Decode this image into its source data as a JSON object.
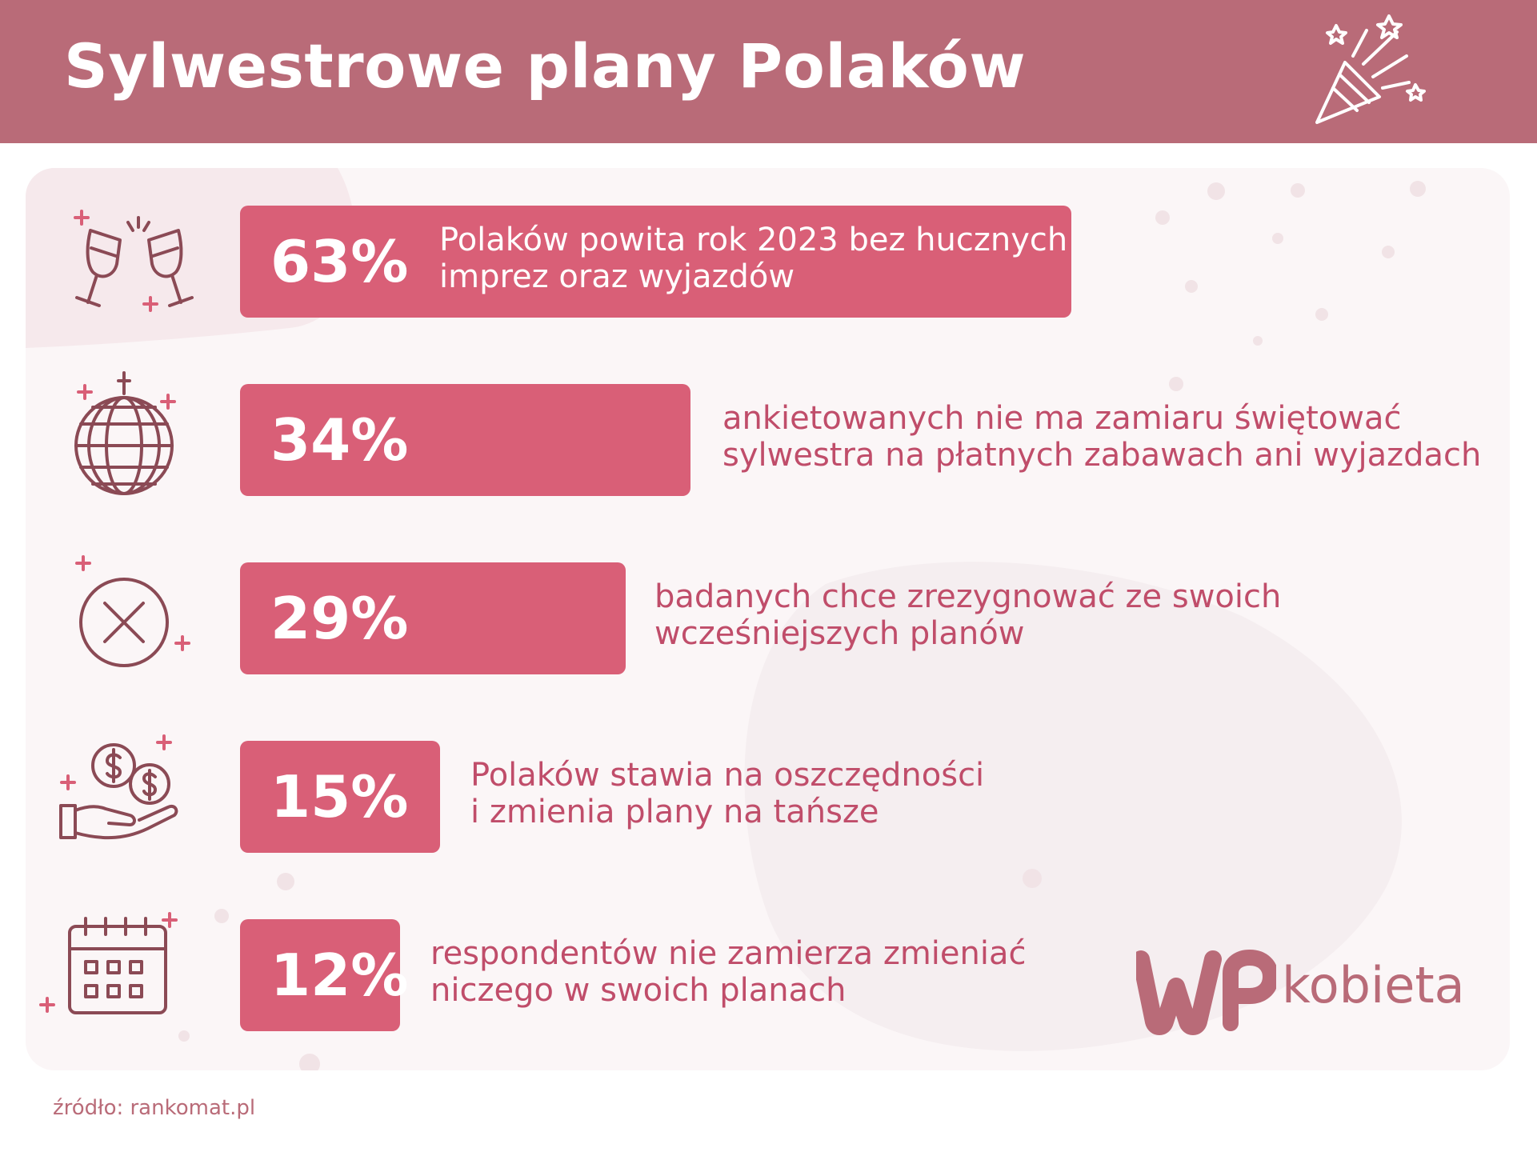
{
  "header": {
    "title": "Sylwestrowe plany Polaków",
    "icon": "party-popper-icon"
  },
  "colors": {
    "header_bg": "#b96b78",
    "bar": "#d95f77",
    "text_accent": "#c04d6a",
    "panel_bg": "#fbf6f7"
  },
  "chart_data": {
    "type": "bar",
    "orientation": "horizontal",
    "unit": "%",
    "title": "Sylwestrowe plany Polaków",
    "xlabel": "",
    "ylabel": "",
    "categories": [
      "Polaków powita rok 2023 bez hucznych imprez oraz wyjazdów",
      "ankietowanych nie ma zamiaru świętować sylwestra na płatnych zabawach ani wyjazdach",
      "badanych chce zrezygnować ze swoich wcześniejszych planów",
      "Polaków stawia na oszczędności i zmienia plany na tańsze",
      "respondentów nie zamierza zmieniać niczego w swoich planach"
    ],
    "values": [
      63,
      34,
      29,
      15,
      12
    ],
    "grid": false,
    "legend": "none"
  },
  "rows": [
    {
      "label": "63%",
      "line1": "Polaków powita rok 2023 bez hucznych",
      "line2": "imprez oraz wyjazdów",
      "icon": "champagne-glasses-icon"
    },
    {
      "label": "34%",
      "line1": "ankietowanych nie ma zamiaru świętować",
      "line2": "sylwestra na płatnych zabawach ani wyjazdach",
      "icon": "disco-ball-icon"
    },
    {
      "label": "29%",
      "line1": "badanych chce zrezygnować ze swoich",
      "line2": "wcześniejszych planów",
      "icon": "cancel-circle-icon"
    },
    {
      "label": "15%",
      "line1": "Polaków stawia na oszczędności",
      "line2": "i zmienia plany na tańsze",
      "icon": "money-hand-icon"
    },
    {
      "label": "12%",
      "line1": "respondentów nie zamierza zmieniać",
      "line2": "niczego w swoich planach",
      "icon": "calendar-icon"
    }
  ],
  "logo": {
    "text": "kobieta",
    "icon": "wp-logo-icon"
  },
  "source": "źródło: rankomat.pl"
}
